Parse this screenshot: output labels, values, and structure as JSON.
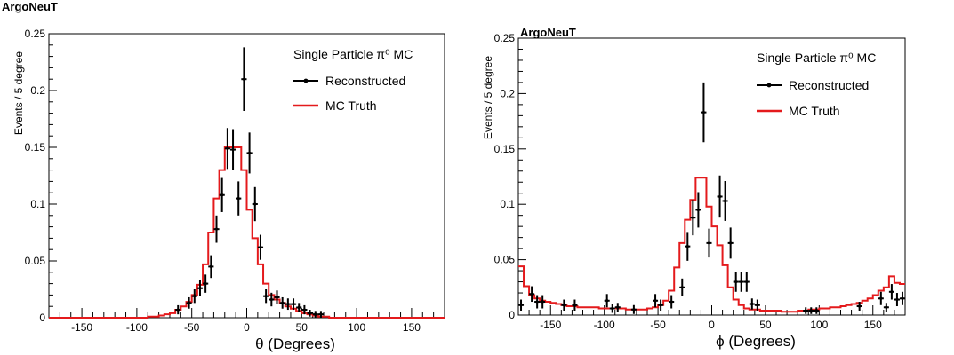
{
  "chart_data": [
    {
      "type": "line",
      "title": "ArgoNeuT",
      "xlabel": "θ (Degrees)",
      "ylabel": "Events / 5 degree",
      "xlim": [
        -180,
        180
      ],
      "ylim": [
        0,
        0.25
      ],
      "xticks": [
        -150,
        -100,
        -50,
        0,
        50,
        100,
        150
      ],
      "yticks": [
        0,
        0.05,
        0.1,
        0.15,
        0.2,
        0.25
      ],
      "grid": false,
      "legend": {
        "position": "top-right",
        "header": "Single Particle π⁰ MC",
        "entries": [
          "Reconstructed",
          "MC Truth"
        ]
      },
      "series": [
        {
          "name": "MC Truth",
          "color": "#e41a1c",
          "style": "histogram-step",
          "bin_width": 5,
          "bins_lower_edge": [
            -180,
            -175,
            -170,
            -165,
            -160,
            -155,
            -150,
            -145,
            -140,
            -135,
            -130,
            -125,
            -120,
            -115,
            -110,
            -105,
            -100,
            -95,
            -90,
            -85,
            -80,
            -75,
            -70,
            -65,
            -60,
            -55,
            -50,
            -45,
            -40,
            -35,
            -30,
            -25,
            -20,
            -15,
            -10,
            -5,
            0,
            5,
            10,
            15,
            20,
            25,
            30,
            35,
            40,
            45,
            50,
            55,
            60,
            65,
            70,
            75,
            80,
            85,
            90,
            95,
            100,
            105,
            110,
            115,
            120,
            125,
            130,
            135,
            140,
            145,
            150,
            155,
            160,
            165,
            170,
            175
          ],
          "values": [
            0,
            0,
            0,
            0,
            0,
            0,
            0,
            0,
            0,
            0,
            0,
            0,
            0,
            0,
            0,
            0,
            0,
            0,
            0.001,
            0.001,
            0.002,
            0.003,
            0.004,
            0.007,
            0.01,
            0.014,
            0.02,
            0.029,
            0.047,
            0.075,
            0.105,
            0.13,
            0.15,
            0.15,
            0.15,
            0.13,
            0.095,
            0.07,
            0.047,
            0.03,
            0.02,
            0.016,
            0.013,
            0.01,
            0.008,
            0.006,
            0.004,
            0.003,
            0.002,
            0.001,
            0.001,
            0,
            0,
            0,
            0,
            0,
            0,
            0,
            0,
            0,
            0,
            0,
            0,
            0,
            0,
            0,
            0,
            0,
            0,
            0,
            0,
            0
          ]
        },
        {
          "name": "Reconstructed",
          "color": "#000000",
          "style": "points-errorbars",
          "x": [
            -62.5,
            -52.5,
            -47.5,
            -42.5,
            -37.5,
            -32.5,
            -27.5,
            -22.5,
            -17.5,
            -12.5,
            -7.5,
            -2.5,
            2.5,
            7.5,
            12.5,
            17.5,
            22.5,
            27.5,
            32.5,
            37.5,
            42.5,
            47.5,
            52.5,
            57.5,
            62.5,
            67.5
          ],
          "y": [
            0.007,
            0.013,
            0.019,
            0.026,
            0.03,
            0.045,
            0.078,
            0.108,
            0.149,
            0.148,
            0.105,
            0.21,
            0.145,
            0.1,
            0.062,
            0.019,
            0.016,
            0.018,
            0.013,
            0.012,
            0.012,
            0.009,
            0.007,
            0.004,
            0.003,
            0.003
          ],
          "yerr": [
            0.004,
            0.005,
            0.006,
            0.007,
            0.008,
            0.01,
            0.012,
            0.015,
            0.018,
            0.018,
            0.015,
            0.028,
            0.018,
            0.015,
            0.011,
            0.006,
            0.006,
            0.006,
            0.005,
            0.005,
            0.005,
            0.004,
            0.004,
            0.003,
            0.003,
            0.003
          ]
        }
      ]
    },
    {
      "type": "line",
      "title": "ArgoNeuT",
      "xlabel": "ϕ (Degrees)",
      "ylabel": "Events / 5 degree",
      "xlim": [
        -180,
        180
      ],
      "ylim": [
        0,
        0.25
      ],
      "xticks": [
        -150,
        -100,
        -50,
        0,
        50,
        100,
        150
      ],
      "yticks": [
        0,
        0.05,
        0.1,
        0.15,
        0.2,
        0.25
      ],
      "grid": false,
      "legend": {
        "position": "top-right",
        "header": "Single Particle π⁰ MC",
        "entries": [
          "Reconstructed",
          "MC Truth"
        ]
      },
      "series": [
        {
          "name": "MC Truth",
          "color": "#e41a1c",
          "style": "histogram-step",
          "bin_width": 5,
          "bins_lower_edge": [
            -180,
            -175,
            -170,
            -165,
            -160,
            -155,
            -150,
            -145,
            -140,
            -135,
            -130,
            -125,
            -120,
            -115,
            -110,
            -105,
            -100,
            -95,
            -90,
            -85,
            -80,
            -75,
            -70,
            -65,
            -60,
            -55,
            -50,
            -45,
            -40,
            -35,
            -30,
            -25,
            -20,
            -15,
            -10,
            -5,
            0,
            5,
            10,
            15,
            20,
            25,
            30,
            35,
            40,
            45,
            50,
            55,
            60,
            65,
            70,
            75,
            80,
            85,
            90,
            95,
            100,
            105,
            110,
            115,
            120,
            125,
            130,
            135,
            140,
            145,
            150,
            155,
            160,
            165,
            170,
            175
          ],
          "values": [
            0.044,
            0.026,
            0.018,
            0.015,
            0.013,
            0.012,
            0.011,
            0.01,
            0.009,
            0.008,
            0.008,
            0.007,
            0.007,
            0.007,
            0.007,
            0.006,
            0.006,
            0.006,
            0.006,
            0.006,
            0.005,
            0.005,
            0.005,
            0.005,
            0.006,
            0.007,
            0.009,
            0.013,
            0.022,
            0.043,
            0.065,
            0.086,
            0.104,
            0.124,
            0.124,
            0.098,
            0.08,
            0.063,
            0.045,
            0.025,
            0.014,
            0.009,
            0.006,
            0.005,
            0.005,
            0.004,
            0.004,
            0.004,
            0.004,
            0.003,
            0.003,
            0.003,
            0.004,
            0.004,
            0.005,
            0.005,
            0.006,
            0.006,
            0.007,
            0.007,
            0.008,
            0.009,
            0.01,
            0.011,
            0.013,
            0.015,
            0.018,
            0.022,
            0.025,
            0.035,
            0.029,
            0.028
          ]
        },
        {
          "name": "Reconstructed",
          "color": "#000000",
          "style": "points-errorbars",
          "x": [
            -177.5,
            -167.5,
            -162.5,
            -157.5,
            -137.5,
            -127.5,
            -97.5,
            -92.5,
            -87.5,
            -72.5,
            -52.5,
            -47.5,
            -37.5,
            -27.5,
            -22.5,
            -17.5,
            -12.5,
            -7.5,
            -2.5,
            7.5,
            12.5,
            17.5,
            22.5,
            27.5,
            32.5,
            37.5,
            42.5,
            87.5,
            92.5,
            97.5,
            137.5,
            157.5,
            162.5,
            167.5,
            172.5,
            177.5
          ],
          "y": [
            0.009,
            0.019,
            0.012,
            0.012,
            0.009,
            0.009,
            0.013,
            0.006,
            0.007,
            0.005,
            0.013,
            0.009,
            0.012,
            0.025,
            0.062,
            0.088,
            0.095,
            0.183,
            0.065,
            0.107,
            0.103,
            0.065,
            0.03,
            0.03,
            0.03,
            0.01,
            0.009,
            0.004,
            0.004,
            0.004,
            0.008,
            0.015,
            0.007,
            0.021,
            0.014,
            0.015
          ],
          "yerr": [
            0.005,
            0.007,
            0.006,
            0.006,
            0.005,
            0.005,
            0.006,
            0.004,
            0.004,
            0.004,
            0.006,
            0.005,
            0.006,
            0.008,
            0.013,
            0.016,
            0.016,
            0.027,
            0.013,
            0.019,
            0.018,
            0.014,
            0.009,
            0.009,
            0.009,
            0.005,
            0.005,
            0.003,
            0.003,
            0.003,
            0.004,
            0.006,
            0.004,
            0.007,
            0.006,
            0.006
          ]
        }
      ]
    }
  ]
}
